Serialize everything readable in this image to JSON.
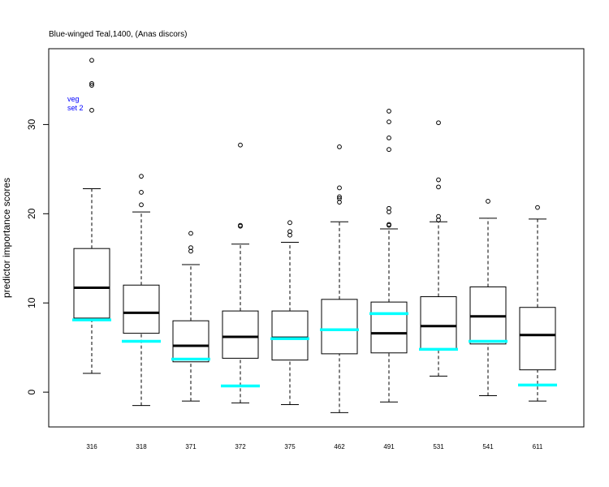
{
  "chart_data": {
    "type": "boxplot",
    "title": "Blue-winged Teal,1400, (Anas discors)",
    "ylabel": "predictor importance scores",
    "xlabel": "",
    "ylim": [
      -3.9,
      38.5
    ],
    "yticks": [
      0,
      10,
      20,
      30
    ],
    "annotation": [
      "veg",
      "set 2"
    ],
    "colors": {
      "box": "#000000",
      "median": "#000000",
      "reference": "#00ffff",
      "annotation": "#0000ff"
    },
    "categories": [
      "316",
      "318",
      "371",
      "372",
      "375",
      "462",
      "491",
      "531",
      "541",
      "611"
    ],
    "boxes": [
      {
        "whisker_low": 2.1,
        "q1": 8.3,
        "median": 11.7,
        "q3": 16.1,
        "whisker_high": 22.8,
        "outliers": [
          31.6,
          34.4,
          34.6,
          37.2
        ],
        "reference": 8.1
      },
      {
        "whisker_low": -1.5,
        "q1": 6.6,
        "median": 8.9,
        "q3": 12.0,
        "whisker_high": 20.2,
        "outliers": [
          21.0,
          22.4,
          24.2
        ],
        "reference": 5.7
      },
      {
        "whisker_low": -1.0,
        "q1": 3.4,
        "median": 5.2,
        "q3": 8.0,
        "whisker_high": 14.3,
        "outliers": [
          15.8,
          16.2,
          17.8
        ],
        "reference": 3.7
      },
      {
        "whisker_low": -1.2,
        "q1": 3.8,
        "median": 6.2,
        "q3": 9.1,
        "whisker_high": 16.6,
        "outliers": [
          18.6,
          18.7,
          27.7
        ],
        "reference": 0.7
      },
      {
        "whisker_low": -1.4,
        "q1": 3.6,
        "median": 6.1,
        "q3": 9.1,
        "whisker_high": 16.8,
        "outliers": [
          17.6,
          18.0,
          19.0
        ],
        "reference": 6.0
      },
      {
        "whisker_low": -2.3,
        "q1": 4.3,
        "median": 7.0,
        "q3": 10.4,
        "whisker_high": 19.1,
        "outliers": [
          21.3,
          21.7,
          21.9,
          22.9,
          27.5
        ],
        "reference": 7.0
      },
      {
        "whisker_low": -1.1,
        "q1": 4.4,
        "median": 6.6,
        "q3": 10.1,
        "whisker_high": 18.3,
        "outliers": [
          18.7,
          18.8,
          20.2,
          20.6,
          27.2,
          28.5,
          30.3,
          31.5
        ],
        "reference": 8.8
      },
      {
        "whisker_low": 1.8,
        "q1": 4.8,
        "median": 7.4,
        "q3": 10.7,
        "whisker_high": 19.1,
        "outliers": [
          19.3,
          19.7,
          23.0,
          23.8,
          30.2
        ],
        "reference": 4.8
      },
      {
        "whisker_low": -0.4,
        "q1": 5.4,
        "median": 8.5,
        "q3": 11.8,
        "whisker_high": 19.5,
        "outliers": [
          21.4
        ],
        "reference": 5.7
      },
      {
        "whisker_low": -1.0,
        "q1": 2.5,
        "median": 6.4,
        "q3": 9.5,
        "whisker_high": 19.4,
        "outliers": [
          20.7
        ],
        "reference": 0.8
      }
    ]
  }
}
